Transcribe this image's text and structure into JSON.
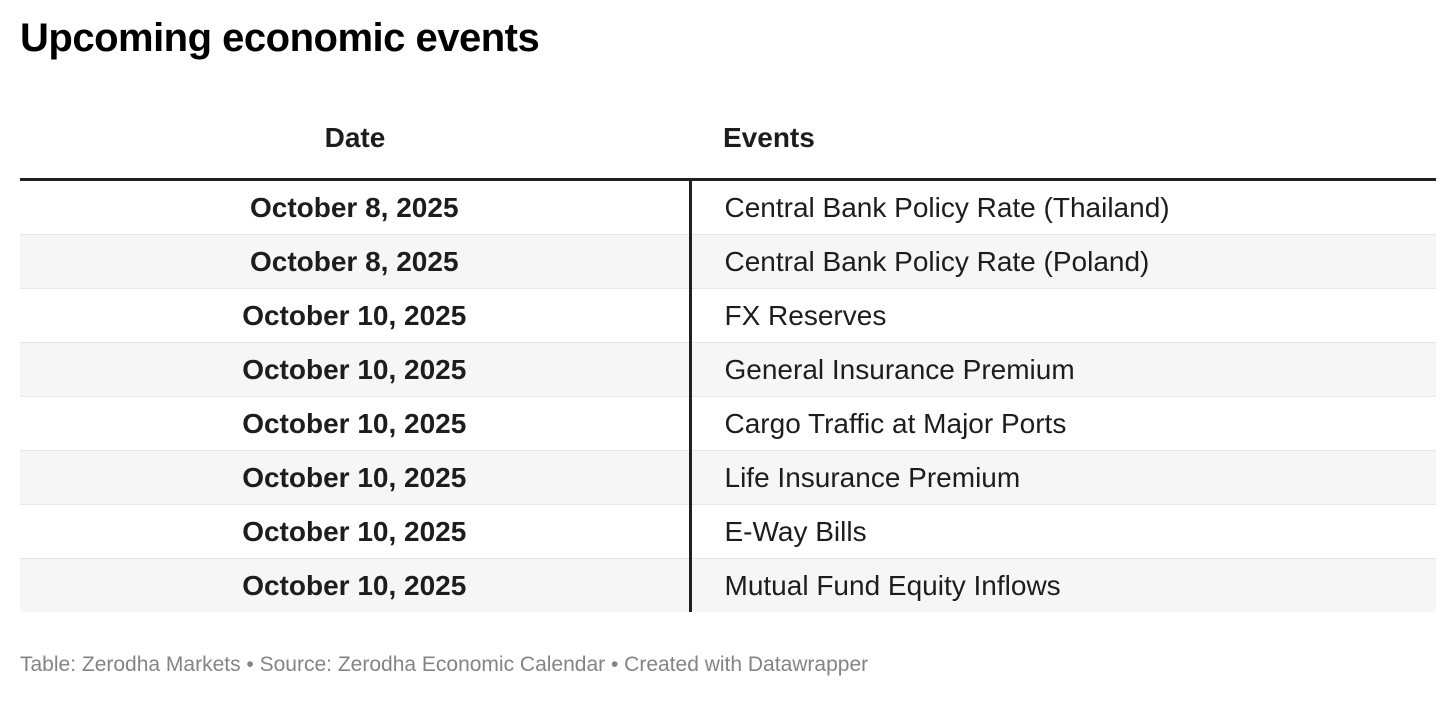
{
  "chart_data": {
    "type": "table",
    "title": "Upcoming economic events",
    "columns": [
      "Date",
      "Events"
    ],
    "rows": [
      {
        "date": "October 8, 2025",
        "event": "Central Bank Policy Rate (Thailand)"
      },
      {
        "date": "October 8, 2025",
        "event": "Central Bank Policy Rate (Poland)"
      },
      {
        "date": "October 10, 2025",
        "event": "FX Reserves"
      },
      {
        "date": "October 10, 2025",
        "event": "General Insurance Premium"
      },
      {
        "date": "October 10, 2025",
        "event": "Cargo Traffic at Major Ports"
      },
      {
        "date": "October 10, 2025",
        "event": "Life Insurance Premium"
      },
      {
        "date": "October 10, 2025",
        "event": "E-Way Bills"
      },
      {
        "date": "October 10, 2025",
        "event": "Mutual Fund Equity Inflows"
      }
    ],
    "layout_hints": {
      "date_column_align": "center",
      "events_column_align": "left",
      "alternating_row_shading": true,
      "column_divider": true
    },
    "footnote": {
      "full_text": "Table: Zerodha Markets • Source: Zerodha Economic Calendar • Created with Datawrapper",
      "table_credit": "Zerodha Markets",
      "source": "Zerodha Economic Calendar",
      "created_with": "Datawrapper"
    }
  },
  "colors": {
    "title_text": "#000000",
    "body_text": "#1d1d1d",
    "header_rule": "#212121",
    "column_divider": "#212121",
    "row_separator": "#e6e6e6",
    "alt_row_background": "#f6f6f6",
    "footer_text": "#848484",
    "background": "#ffffff"
  }
}
